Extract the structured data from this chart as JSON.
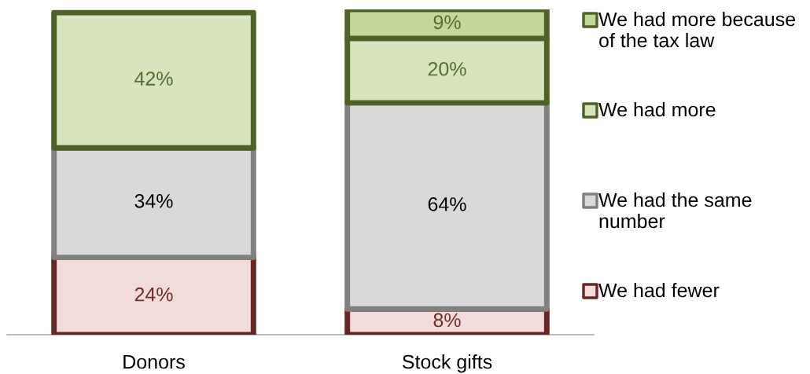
{
  "chart_data": {
    "type": "bar",
    "stacked": true,
    "categories": [
      "Donors",
      "Stock gifts"
    ],
    "series": [
      {
        "name": "We had fewer",
        "color": "#f2dcdb",
        "values": [
          24,
          8
        ],
        "value_labels": [
          "24%",
          "8%"
        ]
      },
      {
        "name": "We had the same number",
        "color": "#d9d9d9",
        "values": [
          34,
          64
        ],
        "value_labels": [
          "34%",
          "64%"
        ]
      },
      {
        "name": "We had more",
        "color": "#d7e4bd",
        "values": [
          42,
          20
        ],
        "value_labels": [
          "42%",
          "20%"
        ]
      },
      {
        "name": "We had more because of the tax law",
        "color": "#c3d69b",
        "values": [
          null,
          9
        ],
        "value_labels": [
          null,
          "9%"
        ]
      }
    ],
    "ylim": [
      0,
      101
    ],
    "legend": "right",
    "tick_labels": "x"
  }
}
